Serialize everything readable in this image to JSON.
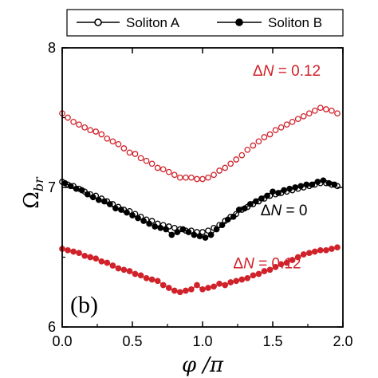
{
  "chart_data": {
    "type": "scatter",
    "panel_label": "(b)",
    "xlabel": "φ /π",
    "ylabel_main": "Ω",
    "ylabel_sub": "br",
    "xlim": [
      0.0,
      2.0
    ],
    "ylim": [
      6.0,
      8.0
    ],
    "xticks": [
      0.0,
      0.5,
      1.0,
      1.5,
      2.0
    ],
    "xtick_labels": [
      "0.0",
      "0.5",
      "1.0",
      "1.5",
      "2.0"
    ],
    "yticks": [
      6,
      7,
      8
    ],
    "ytick_labels": [
      "6",
      "7",
      "8"
    ],
    "legend": {
      "placement": "top",
      "entries": [
        {
          "label": "Soliton A",
          "marker": "open-circle"
        },
        {
          "label": "Soliton B",
          "marker": "filled-circle"
        }
      ]
    },
    "annotations": [
      {
        "prefix": "Δ",
        "var": "N",
        "suffix": " = 0.12",
        "x": 1.6,
        "y": 7.8,
        "color": "#d0222a"
      },
      {
        "prefix": "Δ",
        "var": "N",
        "suffix": " = 0",
        "x": 1.58,
        "y": 6.8,
        "color": "#000000"
      },
      {
        "prefix": "Δ",
        "var": "N",
        "suffix": " = 0.12",
        "x": 1.46,
        "y": 6.42,
        "color": "#d0222a"
      }
    ],
    "series": [
      {
        "name": "Soliton A",
        "group": "ΔN = 0.12",
        "marker": "open",
        "color": "#d0222a",
        "x": [
          0.0,
          0.04,
          0.08,
          0.12,
          0.16,
          0.2,
          0.24,
          0.28,
          0.32,
          0.36,
          0.4,
          0.44,
          0.48,
          0.52,
          0.56,
          0.6,
          0.64,
          0.68,
          0.72,
          0.76,
          0.8,
          0.84,
          0.88,
          0.92,
          0.96,
          1.0,
          1.04,
          1.08,
          1.12,
          1.16,
          1.2,
          1.24,
          1.28,
          1.32,
          1.36,
          1.4,
          1.44,
          1.48,
          1.52,
          1.56,
          1.6,
          1.64,
          1.68,
          1.72,
          1.76,
          1.8,
          1.84,
          1.88,
          1.92,
          1.96
        ],
        "y": [
          7.53,
          7.5,
          7.47,
          7.45,
          7.43,
          7.41,
          7.4,
          7.38,
          7.35,
          7.33,
          7.31,
          7.28,
          7.25,
          7.24,
          7.21,
          7.19,
          7.17,
          7.14,
          7.13,
          7.11,
          7.09,
          7.07,
          7.07,
          7.07,
          7.06,
          7.06,
          7.07,
          7.09,
          7.12,
          7.14,
          7.17,
          7.2,
          7.23,
          7.27,
          7.3,
          7.33,
          7.36,
          7.38,
          7.41,
          7.43,
          7.45,
          7.47,
          7.49,
          7.51,
          7.53,
          7.55,
          7.57,
          7.56,
          7.55,
          7.53
        ]
      },
      {
        "name": "Soliton A",
        "group": "ΔN = 0",
        "marker": "open",
        "color": "#000000",
        "x": [
          0.0,
          0.04,
          0.08,
          0.12,
          0.16,
          0.2,
          0.24,
          0.28,
          0.32,
          0.36,
          0.4,
          0.44,
          0.48,
          0.52,
          0.56,
          0.6,
          0.64,
          0.68,
          0.72,
          0.76,
          0.8,
          0.84,
          0.88,
          0.92,
          0.96,
          1.0,
          1.04,
          1.08,
          1.12,
          1.16,
          1.2,
          1.24,
          1.28,
          1.32,
          1.36,
          1.4,
          1.44,
          1.48,
          1.52,
          1.56,
          1.6,
          1.64,
          1.68,
          1.72,
          1.76,
          1.8,
          1.84,
          1.88,
          1.92,
          1.96
        ],
        "y": [
          7.04,
          7.02,
          7.01,
          6.99,
          6.97,
          6.95,
          6.94,
          6.92,
          6.9,
          6.88,
          6.86,
          6.84,
          6.83,
          6.81,
          6.79,
          6.77,
          6.76,
          6.74,
          6.73,
          6.72,
          6.71,
          6.7,
          6.69,
          6.69,
          6.68,
          6.68,
          6.69,
          6.71,
          6.73,
          6.76,
          6.79,
          6.81,
          6.84,
          6.86,
          6.88,
          6.9,
          6.92,
          6.94,
          6.95,
          6.96,
          6.97,
          6.98,
          6.99,
          7.0,
          7.01,
          7.02,
          7.03,
          7.03,
          7.02,
          7.01
        ]
      },
      {
        "name": "Soliton B",
        "group": "ΔN = 0",
        "marker": "filled",
        "color": "#000000",
        "x": [
          0.02,
          0.06,
          0.1,
          0.14,
          0.18,
          0.22,
          0.26,
          0.3,
          0.34,
          0.38,
          0.42,
          0.46,
          0.5,
          0.54,
          0.58,
          0.62,
          0.66,
          0.7,
          0.74,
          0.78,
          0.82,
          0.86,
          0.9,
          0.94,
          0.98,
          1.02,
          1.06,
          1.1,
          1.14,
          1.18,
          1.22,
          1.26,
          1.3,
          1.34,
          1.38,
          1.42,
          1.46,
          1.5,
          1.54,
          1.58,
          1.62,
          1.66,
          1.7,
          1.74,
          1.78,
          1.82,
          1.86,
          1.9,
          1.94
        ],
        "y": [
          7.03,
          7.01,
          6.99,
          6.98,
          6.95,
          6.93,
          6.91,
          6.9,
          6.88,
          6.85,
          6.84,
          6.82,
          6.8,
          6.78,
          6.76,
          6.74,
          6.72,
          6.71,
          6.7,
          6.66,
          6.68,
          6.7,
          6.68,
          6.66,
          6.65,
          6.64,
          6.66,
          6.7,
          6.73,
          6.77,
          6.79,
          6.84,
          6.85,
          6.88,
          6.9,
          6.92,
          6.94,
          6.97,
          6.96,
          6.98,
          6.99,
          7.0,
          7.01,
          7.02,
          7.02,
          7.04,
          7.05,
          7.03,
          7.02
        ]
      },
      {
        "name": "Soliton B",
        "group": "ΔN = 0.12",
        "marker": "filled",
        "color": "#d0222a",
        "x": [
          0.0,
          0.04,
          0.08,
          0.12,
          0.16,
          0.2,
          0.24,
          0.28,
          0.32,
          0.36,
          0.4,
          0.44,
          0.48,
          0.52,
          0.56,
          0.6,
          0.64,
          0.68,
          0.72,
          0.76,
          0.8,
          0.84,
          0.88,
          0.92,
          0.96,
          1.0,
          1.04,
          1.08,
          1.12,
          1.16,
          1.2,
          1.24,
          1.28,
          1.32,
          1.36,
          1.4,
          1.44,
          1.48,
          1.52,
          1.56,
          1.6,
          1.64,
          1.68,
          1.72,
          1.76,
          1.8,
          1.84,
          1.88,
          1.92,
          1.96
        ],
        "y": [
          6.56,
          6.55,
          6.54,
          6.53,
          6.51,
          6.5,
          6.49,
          6.47,
          6.46,
          6.44,
          6.42,
          6.41,
          6.4,
          6.38,
          6.37,
          6.35,
          6.34,
          6.33,
          6.3,
          6.28,
          6.26,
          6.25,
          6.26,
          6.27,
          6.3,
          6.27,
          6.28,
          6.29,
          6.31,
          6.3,
          6.32,
          6.33,
          6.34,
          6.35,
          6.37,
          6.38,
          6.4,
          6.41,
          6.43,
          6.45,
          6.46,
          6.48,
          6.5,
          6.52,
          6.53,
          6.54,
          6.55,
          6.55,
          6.56,
          6.57
        ]
      }
    ]
  }
}
